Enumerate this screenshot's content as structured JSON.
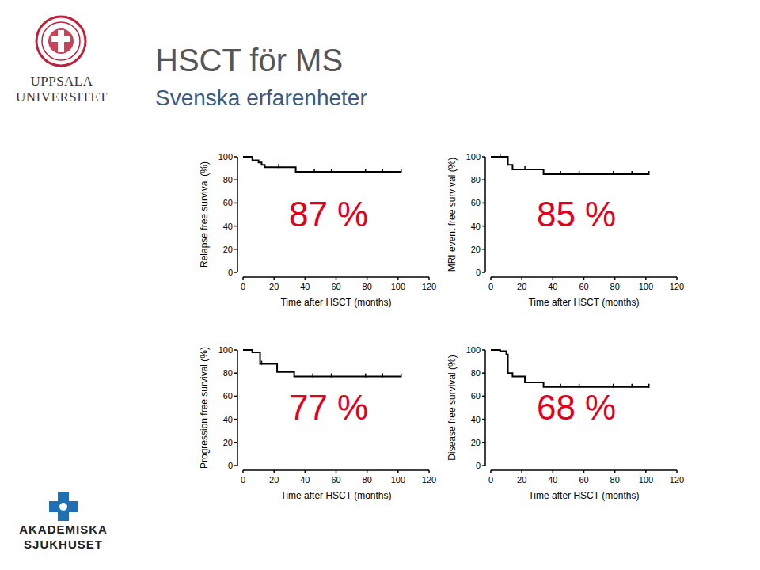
{
  "slide": {
    "title": "HSCT för MS",
    "subtitle": "Svenska erfarenheter",
    "logo_top": [
      "UPPSALA",
      "UNIVERSITET"
    ],
    "logo_bottom": [
      "AKADEMISKA",
      "SJUKHUSET"
    ]
  },
  "chart_data": [
    {
      "type": "line",
      "y_label": "Relapse free survival (%)",
      "x_label": "Time after HSCT (months)",
      "annotation": "87 %",
      "x": [
        0,
        6,
        10,
        12,
        14,
        34,
        102
      ],
      "values": [
        100,
        97,
        95,
        93,
        91,
        87,
        87
      ],
      "censored": [
        23,
        46,
        57,
        79,
        90,
        102
      ],
      "color": "#000000",
      "line_style": "step",
      "xlim": [
        0,
        120
      ],
      "ylim": [
        0,
        100
      ],
      "xticks": [
        0,
        20,
        40,
        60,
        80,
        100,
        120
      ],
      "yticks": [
        0,
        20,
        40,
        60,
        80,
        100
      ],
      "grid": false
    },
    {
      "type": "line",
      "y_label": "MRI event free survival (%)",
      "x_label": "Time after HSCT (months)",
      "annotation": "85 %",
      "x": [
        0,
        11,
        14,
        34,
        102
      ],
      "values": [
        100,
        93,
        89,
        85,
        85
      ],
      "censored": [
        6,
        22,
        45,
        57,
        79,
        91,
        102
      ],
      "color": "#000000",
      "line_style": "step",
      "xlim": [
        0,
        120
      ],
      "ylim": [
        0,
        100
      ],
      "xticks": [
        0,
        20,
        40,
        60,
        80,
        100,
        120
      ],
      "yticks": [
        0,
        20,
        40,
        60,
        80,
        100
      ],
      "grid": false
    },
    {
      "type": "line",
      "y_label": "Progression free survival (%)",
      "x_label": "Time after HSCT (months)",
      "annotation": "77 %",
      "x": [
        0,
        6,
        11,
        22,
        33,
        102
      ],
      "values": [
        100,
        98,
        88,
        81,
        77,
        77
      ],
      "censored": [
        12,
        45,
        57,
        79,
        90,
        102
      ],
      "color": "#000000",
      "line_style": "step",
      "xlim": [
        0,
        120
      ],
      "ylim": [
        0,
        100
      ],
      "xticks": [
        0,
        20,
        40,
        60,
        80,
        100,
        120
      ],
      "yticks": [
        0,
        20,
        40,
        60,
        80,
        100
      ],
      "grid": false
    },
    {
      "type": "line",
      "y_label": "Disease free survival (%)",
      "x_label": "Time after HSCT (months)",
      "annotation": "68 %",
      "x": [
        0,
        6,
        10,
        11,
        14,
        22,
        34,
        102
      ],
      "values": [
        100,
        99,
        96,
        80,
        77,
        72,
        68,
        68
      ],
      "censored": [
        45,
        57,
        79,
        91,
        102
      ],
      "color": "#000000",
      "line_style": "step",
      "xlim": [
        0,
        120
      ],
      "ylim": [
        0,
        100
      ],
      "xticks": [
        0,
        20,
        40,
        60,
        80,
        100,
        120
      ],
      "yticks": [
        0,
        20,
        40,
        60,
        80,
        100
      ],
      "grid": false
    }
  ]
}
